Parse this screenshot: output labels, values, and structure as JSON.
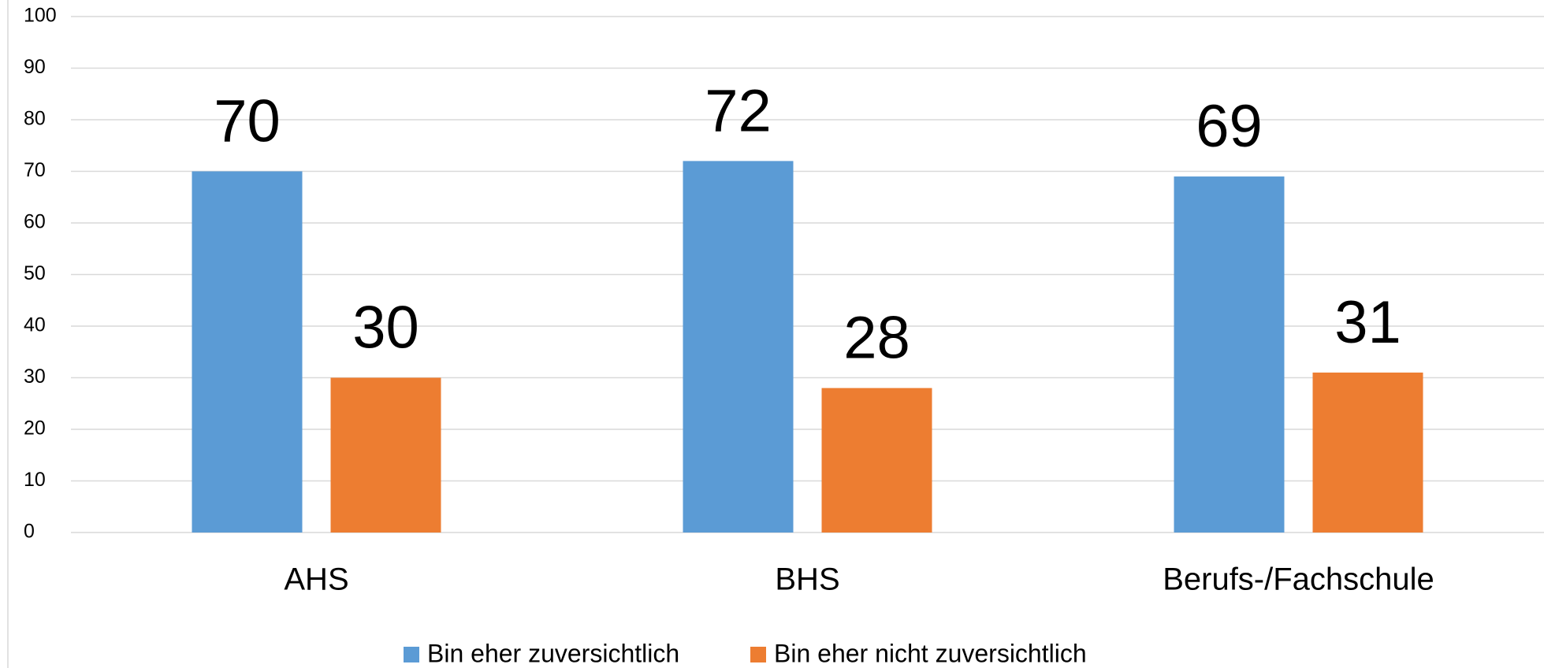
{
  "chart_data": {
    "type": "bar",
    "categories": [
      "AHS",
      "BHS",
      "Berufs-/Fachschule"
    ],
    "series": [
      {
        "name": "Bin eher zuversichtlich",
        "color": "#5b9bd5",
        "values": [
          70,
          72,
          69
        ]
      },
      {
        "name": "Bin eher nicht zuversichtlich",
        "color": "#ed7d31",
        "values": [
          30,
          28,
          31
        ]
      }
    ],
    "ylim": [
      0,
      100
    ],
    "yticks": [
      0,
      10,
      20,
      30,
      40,
      50,
      60,
      70,
      80,
      90,
      100
    ],
    "grid": true,
    "legend": "bottom"
  }
}
